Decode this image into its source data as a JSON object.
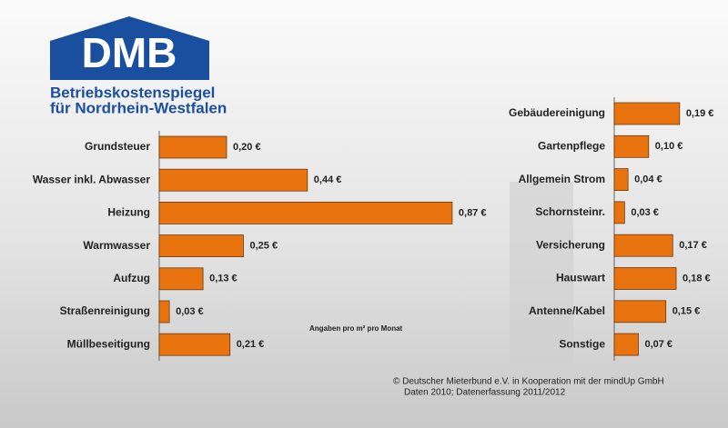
{
  "logo": {
    "mark": "DMB",
    "line1": "Betriebskostenspiegel",
    "line2": "für Nordrhein-Westfalen"
  },
  "footnote": [
    "© Deutscher Mieterbund e.V. in Kooperation mit der mindUp GmbH",
    "Daten 2010; Datenerfassung 2011/2012"
  ],
  "chart_data": [
    {
      "type": "bar",
      "orientation": "horizontal",
      "color": "#e8730f",
      "annotation": "Angaben pro m² pro Monat",
      "categories": [
        "Grundsteuer",
        "Wasser inkl. Abwasser",
        "Heizung",
        "Warmwasser",
        "Aufzug",
        "Straßenreinigung",
        "Müllbeseitigung"
      ],
      "values": [
        0.2,
        0.44,
        0.87,
        0.25,
        0.13,
        0.03,
        0.21
      ],
      "value_labels": [
        "0,20 €",
        "0,44 €",
        "0,87 €",
        "0,25 €",
        "0,13 €",
        "0,03 €",
        "0,21 €"
      ]
    },
    {
      "type": "bar",
      "orientation": "horizontal",
      "color": "#e8730f",
      "categories": [
        "Gebäudereinigung",
        "Gartenpflege",
        "Allgemein Strom",
        "Schornsteinr.",
        "Versicherung",
        "Hauswart",
        "Antenne/Kabel",
        "Sonstige"
      ],
      "values": [
        0.19,
        0.1,
        0.04,
        0.03,
        0.17,
        0.18,
        0.15,
        0.07
      ],
      "value_labels": [
        "0,19 €",
        "0,10 €",
        "0,04 €",
        "0,03 €",
        "0,17 €",
        "0,18 €",
        "0,15 €",
        "0,07 €"
      ]
    }
  ]
}
